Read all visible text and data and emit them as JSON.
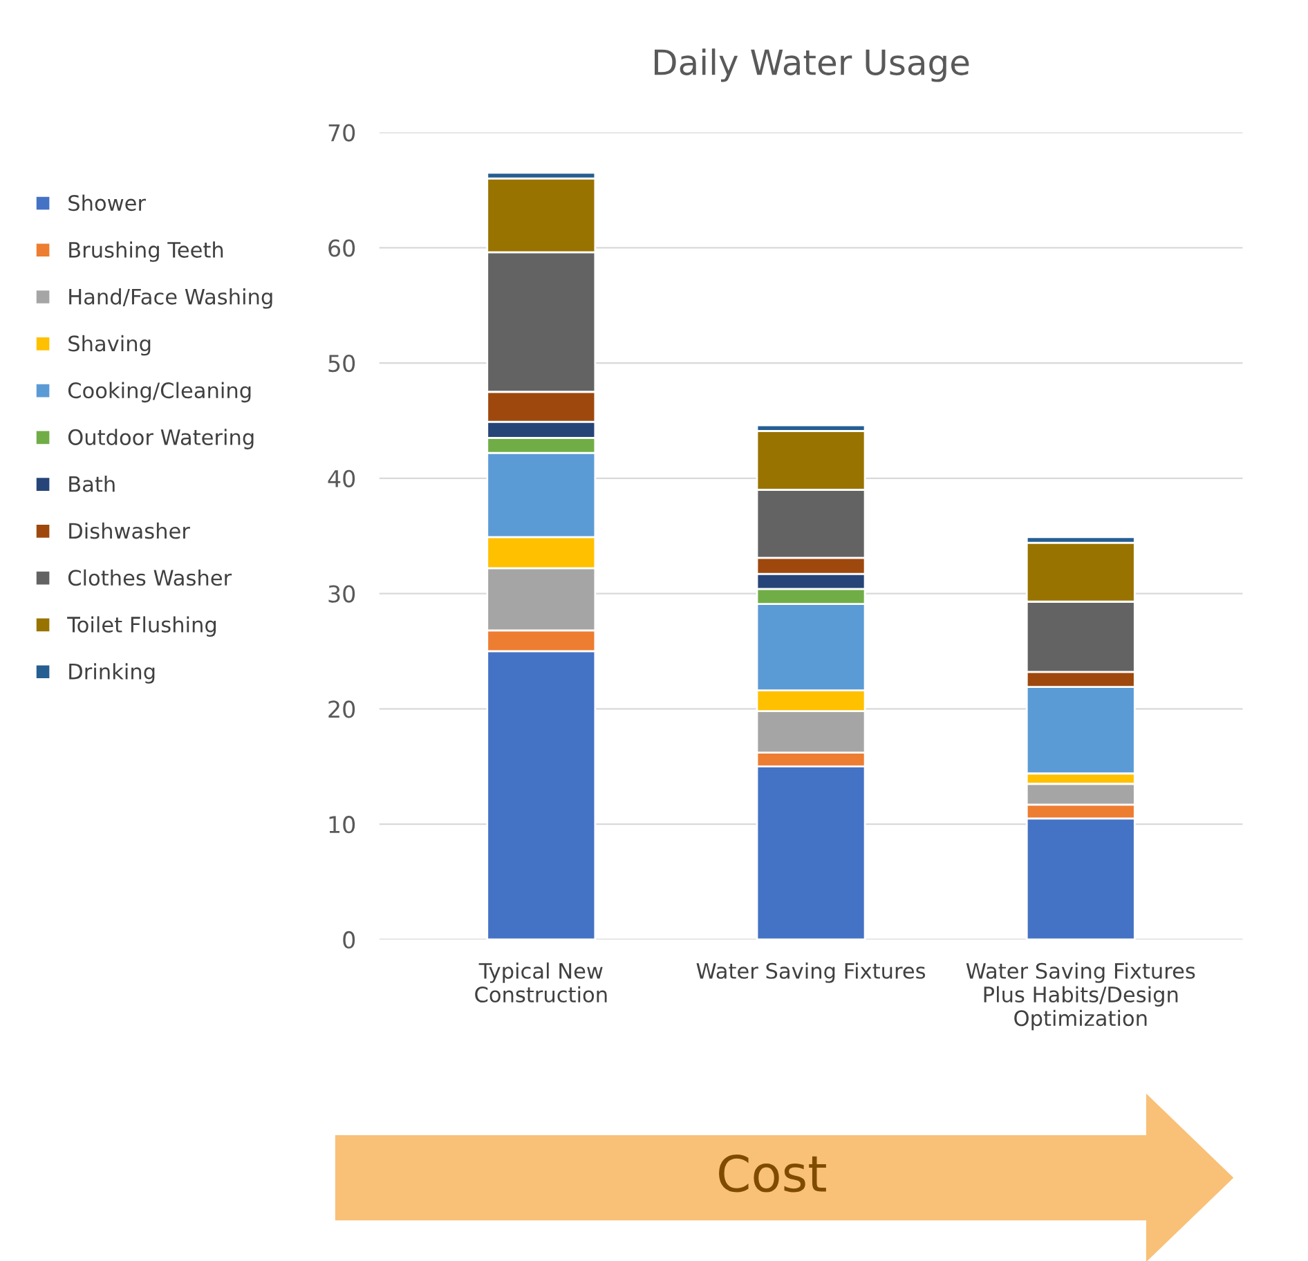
{
  "chart_data": {
    "type": "bar",
    "title": "Daily Water Usage",
    "stacked": true,
    "categories": [
      "Typical New\nConstruction",
      "Water Saving Fixtures",
      "Water Saving Fixtures\nPlus Habits/Design\nOptimization"
    ],
    "series": [
      {
        "name": "Shower",
        "color": "#4472c4",
        "values": [
          25,
          15,
          10.5
        ]
      },
      {
        "name": "Brushing Teeth",
        "color": "#ed7d31",
        "values": [
          1.8,
          1.2,
          1.2
        ]
      },
      {
        "name": "Hand/Face Washing",
        "color": "#a5a5a5",
        "values": [
          5.4,
          3.6,
          1.8
        ]
      },
      {
        "name": "Shaving",
        "color": "#ffc000",
        "values": [
          2.7,
          1.8,
          0.9
        ]
      },
      {
        "name": "Cooking/Cleaning",
        "color": "#5b9bd5",
        "values": [
          7.3,
          7.5,
          7.5
        ]
      },
      {
        "name": "Outdoor Watering",
        "color": "#70ad47",
        "values": [
          1.3,
          1.3,
          0
        ]
      },
      {
        "name": "Bath",
        "color": "#264478",
        "values": [
          1.4,
          1.3,
          0
        ]
      },
      {
        "name": "Dishwasher",
        "color": "#9e480e",
        "values": [
          2.6,
          1.4,
          1.3
        ]
      },
      {
        "name": "Clothes Washer",
        "color": "#636363",
        "values": [
          12.1,
          5.9,
          6.1
        ]
      },
      {
        "name": "Toilet Flushing",
        "color": "#997300",
        "values": [
          6.4,
          5.1,
          5.1
        ]
      },
      {
        "name": "Drinking",
        "color": "#255e91",
        "values": [
          0.5,
          0.5,
          0.5
        ]
      }
    ],
    "ylim": [
      0,
      70
    ],
    "yticks": [
      0,
      10,
      20,
      30,
      40,
      50,
      60,
      70
    ],
    "grid": "y",
    "legend": "left",
    "annotations": [
      "Cost"
    ]
  }
}
